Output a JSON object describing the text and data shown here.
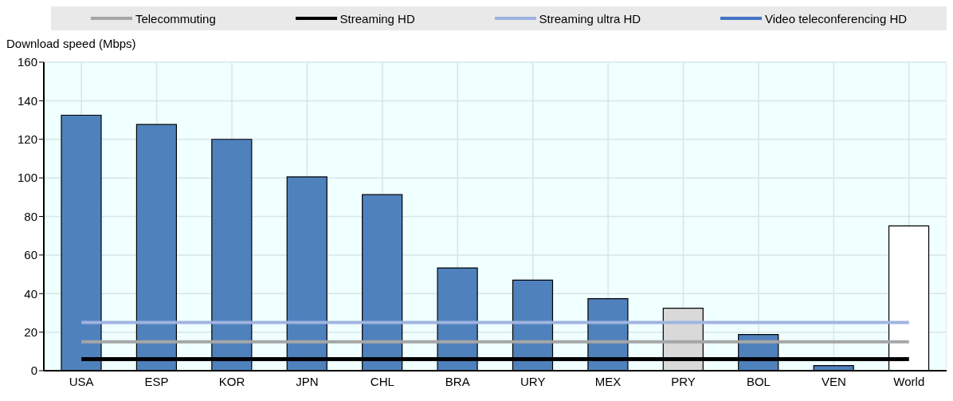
{
  "chart_data": {
    "type": "bar",
    "ylabel": "Download speed (Mbps)",
    "categories": [
      "USA",
      "ESP",
      "KOR",
      "JPN",
      "CHL",
      "BRA",
      "URY",
      "MEX",
      "PRY",
      "BOL",
      "VEN",
      "World"
    ],
    "values": [
      132.5,
      127.7,
      120,
      100.5,
      91.3,
      53.3,
      47,
      37.4,
      32.4,
      18.8,
      2.6,
      75.1
    ],
    "colors": [
      "#4f81bd",
      "#4f81bd",
      "#4f81bd",
      "#4f81bd",
      "#4f81bd",
      "#4f81bd",
      "#4f81bd",
      "#4f81bd",
      "#d9d9d9",
      "#4f81bd",
      "#4f81bd",
      "#ffffff"
    ],
    "series": [
      {
        "name": "Telecommuting",
        "type": "line",
        "color": "#a6a6a6",
        "values": [
          15,
          15,
          15,
          15,
          15,
          15,
          15,
          15,
          15,
          15,
          15,
          15
        ]
      },
      {
        "name": "Streaming HD",
        "type": "line",
        "color": "#000000",
        "values": [
          6,
          6,
          6,
          6,
          6,
          6,
          6,
          6,
          6,
          6,
          6,
          6
        ]
      },
      {
        "name": "Streaming ultra HD",
        "type": "line",
        "color": "#9fb4e0",
        "values": [
          25,
          25,
          25,
          25,
          25,
          25,
          25,
          25,
          25,
          25,
          25,
          25
        ]
      },
      {
        "name": "Video teleconferencing HD",
        "type": "line",
        "color": "#4472c4",
        "values": [
          null,
          null,
          null,
          null,
          null,
          null,
          null,
          null,
          null,
          null,
          null,
          null
        ]
      }
    ],
    "ylim": [
      0,
      160
    ],
    "yticks": [
      0,
      20,
      40,
      60,
      80,
      100,
      120,
      140,
      160
    ],
    "grid": true,
    "legend": "top"
  }
}
